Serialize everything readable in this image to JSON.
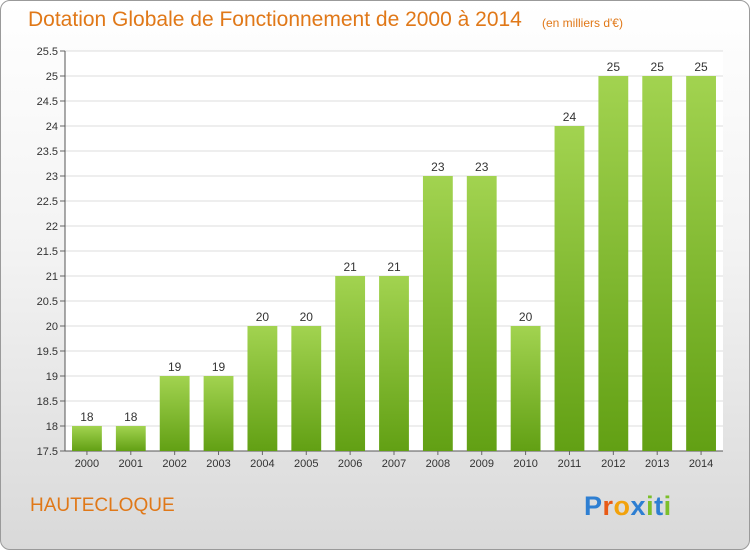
{
  "title": "Dotation Globale de Fonctionnement de 2000 à 2014",
  "subtitle": "(en milliers d'€)",
  "commune": "HAUTECLOQUE",
  "logo": {
    "text": "Proxiti",
    "letters": [
      "P",
      "r",
      "o",
      "x",
      "i",
      "t",
      "i"
    ]
  },
  "colors": {
    "title": "#e07818",
    "bar_light": "#9ed04c",
    "bar_dark": "#66a018"
  },
  "chart_data": {
    "type": "bar",
    "categories": [
      "2000",
      "2001",
      "2002",
      "2003",
      "2004",
      "2005",
      "2006",
      "2007",
      "2008",
      "2009",
      "2010",
      "2011",
      "2012",
      "2013",
      "2014"
    ],
    "values": [
      18,
      18,
      19,
      19,
      20,
      20,
      21,
      21,
      23,
      23,
      20,
      24,
      25,
      25,
      25
    ],
    "title": "Dotation Globale de Fonctionnement de 2000 à 2014",
    "subtitle": "(en milliers d'€)",
    "xlabel": "",
    "ylabel": "",
    "ylim": [
      17.5,
      25.5
    ],
    "yticks": [
      "17.5",
      "18",
      "18.5",
      "19",
      "19.5",
      "20",
      "20.5",
      "21",
      "21.5",
      "22",
      "22.5",
      "23",
      "23.5",
      "24",
      "24.5",
      "25",
      "25.5"
    ],
    "grid": true,
    "legend": "none"
  }
}
